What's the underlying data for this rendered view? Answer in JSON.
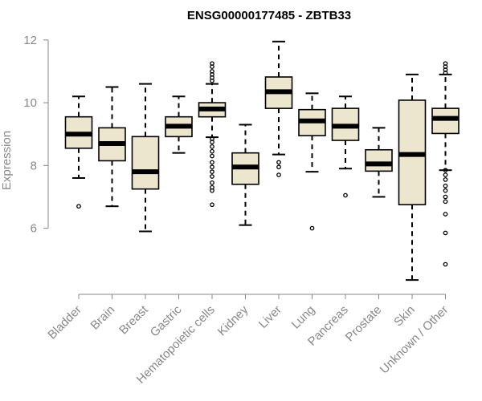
{
  "chart_data": {
    "type": "boxplot",
    "title": "ENSG00000177485 - ZBTB33",
    "xlabel": "",
    "ylabel": "Expression",
    "ylim": [
      4.2,
      12.2
    ],
    "yticks": [
      6,
      8,
      10,
      12
    ],
    "colors": {
      "box_fill": "#ede6cf",
      "stroke": "#000000",
      "axis": "#888888"
    },
    "groups": [
      {
        "name": "Bladder",
        "whisker_low": 7.6,
        "q1": 8.55,
        "median": 9.0,
        "q3": 9.55,
        "whisker_high": 10.2,
        "outliers": [
          6.7
        ]
      },
      {
        "name": "Brain",
        "whisker_low": 6.7,
        "q1": 8.15,
        "median": 8.7,
        "q3": 9.2,
        "whisker_high": 10.5,
        "outliers": []
      },
      {
        "name": "Breast",
        "whisker_low": 5.9,
        "q1": 7.25,
        "median": 7.8,
        "q3": 8.92,
        "whisker_high": 10.6,
        "outliers": []
      },
      {
        "name": "Gastric",
        "whisker_low": 8.4,
        "q1": 8.92,
        "median": 9.25,
        "q3": 9.55,
        "whisker_high": 10.2,
        "outliers": []
      },
      {
        "name": "Hematopoietic cells",
        "whisker_low": 8.9,
        "q1": 9.55,
        "median": 9.8,
        "q3": 10.0,
        "whisker_high": 10.6,
        "outliers": [
          11.25,
          11.15,
          11.0,
          10.9,
          10.8,
          10.7,
          8.85,
          8.75,
          8.6,
          8.45,
          8.3,
          8.1,
          7.95,
          7.8,
          7.65,
          7.45,
          7.3,
          7.2,
          6.75
        ]
      },
      {
        "name": "Kidney",
        "whisker_low": 6.1,
        "q1": 7.4,
        "median": 7.95,
        "q3": 8.4,
        "whisker_high": 9.3,
        "outliers": []
      },
      {
        "name": "Liver",
        "whisker_low": 8.35,
        "q1": 9.82,
        "median": 10.35,
        "q3": 10.82,
        "whisker_high": 11.95,
        "outliers": [
          8.1,
          7.95,
          7.7
        ]
      },
      {
        "name": "Lung",
        "whisker_low": 7.8,
        "q1": 8.95,
        "median": 9.42,
        "q3": 9.78,
        "whisker_high": 10.3,
        "outliers": [
          6.0
        ]
      },
      {
        "name": "Pancreas",
        "whisker_low": 7.9,
        "q1": 8.8,
        "median": 9.25,
        "q3": 9.82,
        "whisker_high": 10.2,
        "outliers": [
          7.05
        ]
      },
      {
        "name": "Prostate",
        "whisker_low": 7.0,
        "q1": 7.82,
        "median": 8.05,
        "q3": 8.5,
        "whisker_high": 9.2,
        "outliers": []
      },
      {
        "name": "Skin",
        "whisker_low": 4.35,
        "q1": 6.75,
        "median": 8.35,
        "q3": 10.08,
        "whisker_high": 10.9,
        "outliers": []
      },
      {
        "name": "Unknown / Other",
        "whisker_low": 7.85,
        "q1": 9.02,
        "median": 9.5,
        "q3": 9.82,
        "whisker_high": 10.9,
        "outliers": [
          11.25,
          11.15,
          11.05,
          10.95,
          7.85,
          7.7,
          7.55,
          7.35,
          7.2,
          7.0,
          6.85,
          6.45,
          5.85,
          4.85
        ]
      }
    ]
  }
}
